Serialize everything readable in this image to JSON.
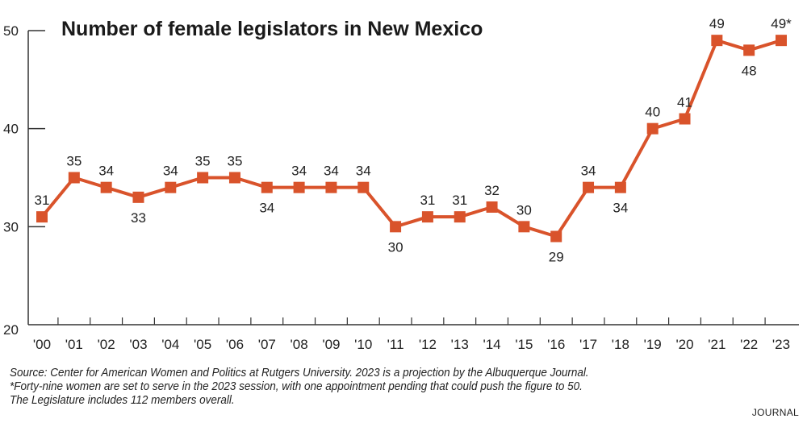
{
  "chart_data": {
    "type": "line",
    "title": "Number of female legislators in New Mexico",
    "categories": [
      "'00",
      "'01",
      "'02",
      "'03",
      "'04",
      "'05",
      "'06",
      "'07",
      "'08",
      "'09",
      "'10",
      "'11",
      "'12",
      "'13",
      "'14",
      "'15",
      "'16",
      "'17",
      "'18",
      "'19",
      "'20",
      "'21",
      "'22",
      "'23"
    ],
    "values": [
      31,
      35,
      34,
      33,
      34,
      35,
      35,
      34,
      34,
      34,
      34,
      30,
      31,
      31,
      32,
      30,
      29,
      34,
      34,
      40,
      41,
      49,
      48,
      49
    ],
    "data_labels": [
      "31",
      "35",
      "34",
      "33",
      "34",
      "35",
      "35",
      "34",
      "34",
      "34",
      "34",
      "30",
      "31",
      "31",
      "32",
      "30",
      "29",
      "34",
      "34",
      "40",
      "41",
      "49",
      "48",
      "49*"
    ],
    "ylim": [
      20,
      50
    ],
    "yticks": [
      20,
      30,
      40,
      50
    ],
    "grid": false,
    "series_color": "#d9532b"
  },
  "notes": [
    "Source: Center for American Women and Politics at Rutgers University. 2023 is a projection by the Albuquerque Journal.",
    "*Forty-nine women are set to serve in the 2023 session, with one appointment pending that could push the figure to 50.",
    "The Legislature includes 112 members overall."
  ],
  "credit": "JOURNAL"
}
